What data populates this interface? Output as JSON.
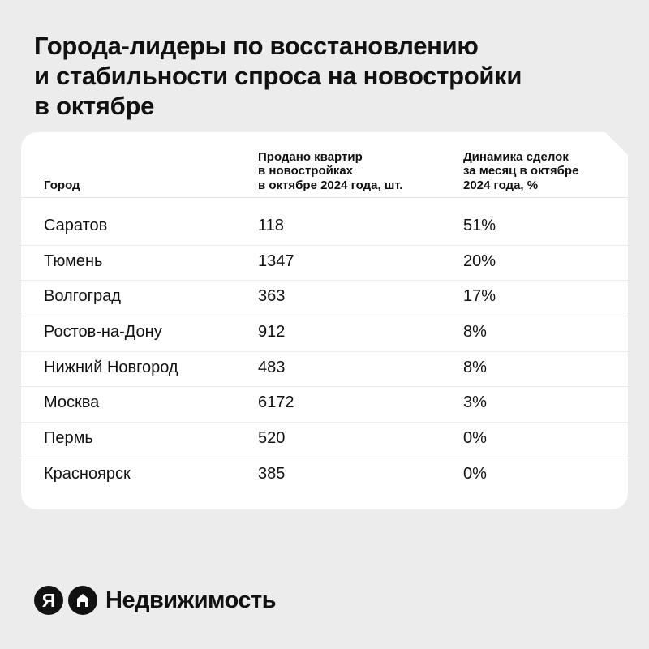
{
  "title": {
    "line1": "Города-лидеры по восстановлению",
    "line2": "и стабильности спроса на новостройки",
    "line3": "в октябре"
  },
  "table": {
    "headers": {
      "city": "Город",
      "sold_lines": [
        "Продано квартир",
        "в новостройках",
        "в октябре 2024 года, шт."
      ],
      "dynamics_lines": [
        "Динамика сделок",
        "за месяц в октябре",
        "2024 года, %"
      ]
    },
    "rows": [
      {
        "city": "Саратов",
        "sold": "118",
        "dynamics": "51%"
      },
      {
        "city": "Тюмень",
        "sold": "1347",
        "dynamics": "20%"
      },
      {
        "city": "Волгоград",
        "sold": "363",
        "dynamics": "17%"
      },
      {
        "city": "Ростов-на-Дону",
        "sold": "912",
        "dynamics": "8%"
      },
      {
        "city": "Нижний Новгород",
        "sold": "483",
        "dynamics": "8%"
      },
      {
        "city": "Москва",
        "sold": "6172",
        "dynamics": "3%"
      },
      {
        "city": "Пермь",
        "sold": "520",
        "dynamics": "0%"
      },
      {
        "city": "Красноярск",
        "sold": "385",
        "dynamics": "0%"
      }
    ]
  },
  "chart_data": {
    "type": "table",
    "title": "Города-лидеры по восстановлению и стабильности спроса на новостройки в октябре",
    "columns": [
      "Город",
      "Продано квартир в новостройках в октябре 2024 года, шт.",
      "Динамика сделок за месяц в октябре 2024 года, %"
    ],
    "categories": [
      "Саратов",
      "Тюмень",
      "Волгоград",
      "Ростов-на-Дону",
      "Нижний Новгород",
      "Москва",
      "Пермь",
      "Красноярск"
    ],
    "series": [
      {
        "name": "Продано квартир в новостройках в октябре 2024 года, шт.",
        "values": [
          118,
          1347,
          363,
          912,
          483,
          6172,
          520,
          385
        ]
      },
      {
        "name": "Динамика сделок за месяц в октябре 2024 года, %",
        "values": [
          51,
          20,
          17,
          8,
          8,
          3,
          0,
          0
        ]
      }
    ]
  },
  "brand": {
    "ya_letter": "Я",
    "name": "Недвижимость",
    "icons": [
      "yandex-logo-icon",
      "house-logo-icon"
    ]
  },
  "colors": {
    "background": "#ececec",
    "card": "#ffffff",
    "text": "#111111"
  }
}
